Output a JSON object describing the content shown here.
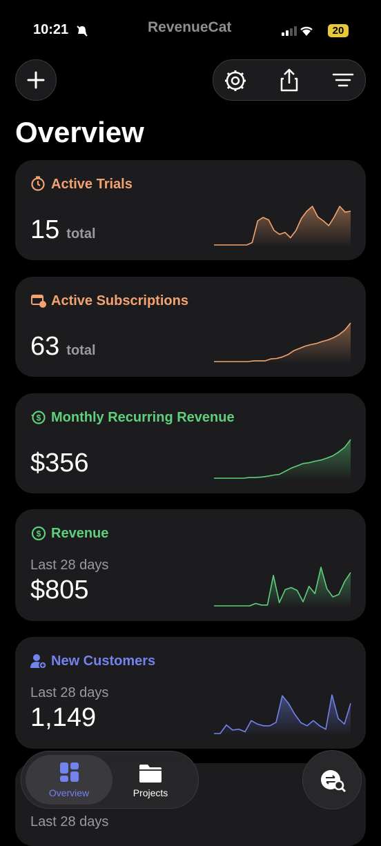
{
  "status_bar": {
    "time": "10:21",
    "battery": "20"
  },
  "header": {
    "brand": "RevenueCat",
    "title": "Overview"
  },
  "cards": [
    {
      "title": "Active Trials",
      "value": "15",
      "unit": "total",
      "color": "#f2a36f",
      "sparkline": [
        0,
        0,
        0,
        0,
        0,
        0,
        0,
        5,
        50,
        57,
        52,
        30,
        22,
        26,
        15,
        30,
        55,
        70,
        80,
        58,
        50,
        40,
        58,
        80,
        68,
        70
      ]
    },
    {
      "title": "Active Subscriptions",
      "value": "63",
      "unit": "total",
      "color": "#f2a36f",
      "sparkline": [
        0,
        0,
        0,
        0,
        0,
        0,
        0,
        2,
        2,
        2,
        7,
        8,
        12,
        18,
        28,
        34,
        40,
        44,
        47,
        52,
        56,
        62,
        70,
        82,
        100
      ]
    },
    {
      "title": "Monthly Recurring Revenue",
      "value": "$356",
      "color": "#5fcf7c",
      "sparkline": [
        0,
        0,
        0,
        0,
        0,
        0,
        2,
        2,
        3,
        5,
        8,
        10,
        18,
        26,
        32,
        38,
        40,
        44,
        47,
        52,
        58,
        68,
        80,
        100
      ]
    },
    {
      "title": "Revenue",
      "subtitle": "Last 28 days",
      "value": "$805",
      "color": "#5fcf7c",
      "sparkline": [
        0,
        0,
        0,
        0,
        0,
        0,
        0,
        6,
        2,
        2,
        75,
        8,
        40,
        45,
        38,
        10,
        48,
        30,
        95,
        42,
        22,
        28,
        60,
        82
      ]
    },
    {
      "title": "New Customers",
      "subtitle": "Last 28 days",
      "value": "1,149",
      "color": "#7283ee",
      "sparkline": [
        0,
        0,
        20,
        8,
        10,
        4,
        30,
        22,
        18,
        18,
        26,
        88,
        70,
        45,
        25,
        18,
        30,
        18,
        10,
        90,
        35,
        22,
        70
      ]
    }
  ],
  "peek": {
    "subtitle": "Last 28 days"
  },
  "tab_bar": {
    "tabs": [
      "Overview",
      "Projects"
    ]
  }
}
